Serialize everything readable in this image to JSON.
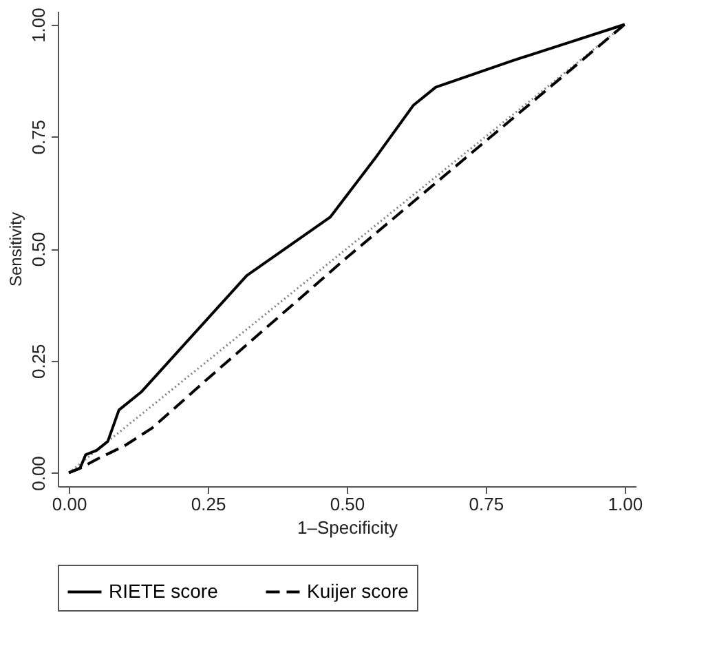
{
  "chart_data": {
    "type": "line",
    "xlabel": "1–Specificity",
    "ylabel": "Sensitivity",
    "xlim": [
      -0.02,
      1.02
    ],
    "ylim": [
      -0.03,
      1.03
    ],
    "xticks": [
      {
        "value": 0,
        "label": "0.00"
      },
      {
        "value": 0.25,
        "label": "0.25"
      },
      {
        "value": 0.5,
        "label": "0.50"
      },
      {
        "value": 0.75,
        "label": "0.75"
      },
      {
        "value": 1,
        "label": "1.00"
      }
    ],
    "yticks": [
      {
        "value": 0,
        "label": "0.00"
      },
      {
        "value": 0.25,
        "label": "0.25"
      },
      {
        "value": 0.5,
        "label": "0.50"
      },
      {
        "value": 0.75,
        "label": "0.75"
      },
      {
        "value": 1,
        "label": "1.00"
      }
    ],
    "series": [
      {
        "name": "RIETE score",
        "color": "#000000",
        "line_style": "solid",
        "x": [
          0,
          0.02,
          0.03,
          0.05,
          0.07,
          0.09,
          0.13,
          0.32,
          0.47,
          0.55,
          0.62,
          0.66,
          0.8,
          0.9,
          1
        ],
        "values": [
          0,
          0.01,
          0.04,
          0.05,
          0.07,
          0.14,
          0.18,
          0.44,
          0.57,
          0.7,
          0.82,
          0.86,
          0.92,
          0.96,
          1
        ]
      },
      {
        "name": "Kuijer score",
        "color": "#000000",
        "line_style": "dashed",
        "x": [
          0,
          0.02,
          0.05,
          0.1,
          0.15,
          0.25,
          0.5,
          0.75,
          1
        ],
        "values": [
          0,
          0.01,
          0.03,
          0.06,
          0.1,
          0.21,
          0.48,
          0.74,
          1
        ]
      },
      {
        "color": "#808080",
        "line_style": "dotted",
        "x": [
          0,
          1
        ],
        "values": [
          0,
          1
        ]
      }
    ],
    "legend": "bottom",
    "grid": false
  }
}
